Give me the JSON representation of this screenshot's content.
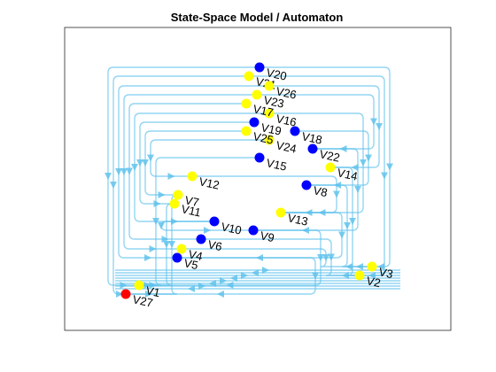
{
  "title": "State-Space Model / Automaton",
  "colors": {
    "background": "#ffffff",
    "edge": "#5bc0eb",
    "node_yellow": "#ffff00",
    "node_blue": "#0000ff",
    "node_red": "#ff0000"
  },
  "nodes": [
    {
      "id": "V1",
      "label": "V1",
      "color": "yellow"
    },
    {
      "id": "V2",
      "label": "V2",
      "color": "yellow"
    },
    {
      "id": "V3",
      "label": "V3",
      "color": "yellow"
    },
    {
      "id": "V4",
      "label": "V4",
      "color": "yellow"
    },
    {
      "id": "V5",
      "label": "V5",
      "color": "blue"
    },
    {
      "id": "V6",
      "label": "V6",
      "color": "blue"
    },
    {
      "id": "V7",
      "label": "V7",
      "color": "yellow"
    },
    {
      "id": "V8",
      "label": "V8",
      "color": "blue"
    },
    {
      "id": "V9",
      "label": "V9",
      "color": "blue"
    },
    {
      "id": "V10",
      "label": "V10",
      "color": "blue"
    },
    {
      "id": "V11",
      "label": "V11",
      "color": "yellow"
    },
    {
      "id": "V12",
      "label": "V12",
      "color": "yellow"
    },
    {
      "id": "V13",
      "label": "V13",
      "color": "yellow"
    },
    {
      "id": "V14",
      "label": "V14",
      "color": "yellow"
    },
    {
      "id": "V15",
      "label": "V15",
      "color": "blue"
    },
    {
      "id": "V16",
      "label": "V16",
      "color": "yellow"
    },
    {
      "id": "V17",
      "label": "V17",
      "color": "yellow"
    },
    {
      "id": "V18",
      "label": "V18",
      "color": "blue"
    },
    {
      "id": "V19",
      "label": "V19",
      "color": "blue"
    },
    {
      "id": "V20",
      "label": "V20",
      "color": "blue"
    },
    {
      "id": "V21",
      "label": "V21",
      "color": "yellow"
    },
    {
      "id": "V22",
      "label": "V22",
      "color": "blue"
    },
    {
      "id": "V23",
      "label": "V23",
      "color": "yellow"
    },
    {
      "id": "V24",
      "label": "V24",
      "color": "yellow"
    },
    {
      "id": "V25",
      "label": "V25",
      "color": "yellow"
    },
    {
      "id": "V26",
      "label": "V26",
      "color": "yellow"
    },
    {
      "id": "V27",
      "label": "V27",
      "color": "red"
    }
  ]
}
